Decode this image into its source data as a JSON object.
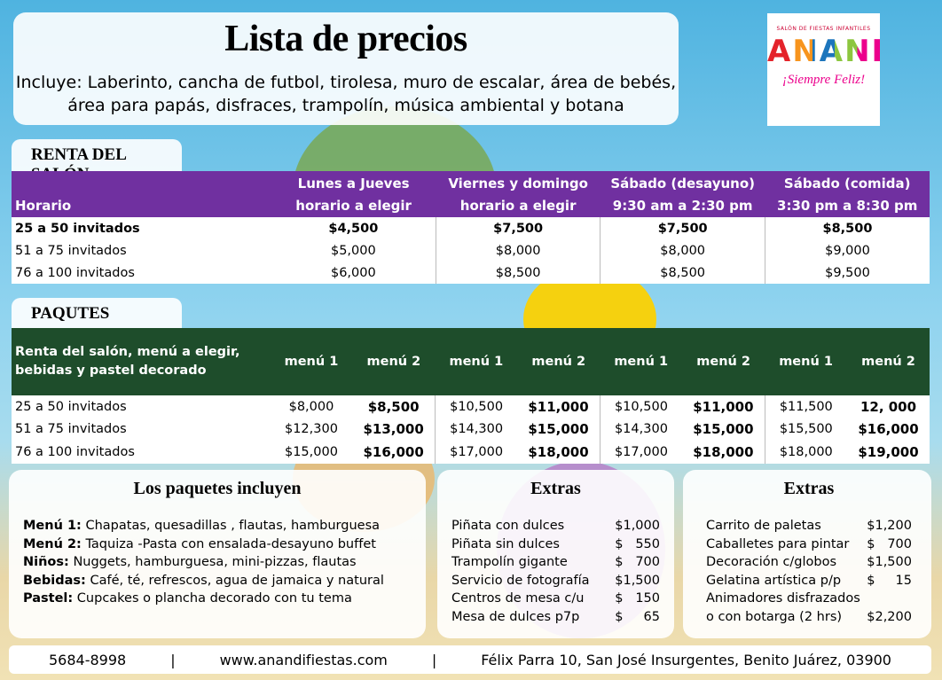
{
  "header": {
    "title": "Lista de precios",
    "lines": [
      "Incluye: Laberinto, cancha de futbol, tirolesa, muro de escalar, área de bebés,",
      "área para papás, disfraces, trampolín, música ambiental y botana"
    ]
  },
  "logo": {
    "top": "SALÓN DE FIESTAS INFANTILES",
    "name": "ANANDI",
    "slogan": "¡Siempre Feliz!"
  },
  "rental": {
    "label": "RENTA DEL SALÓN",
    "header": [
      [
        "",
        "Horario"
      ],
      [
        "Lunes a Jueves",
        "horario a elegir"
      ],
      [
        "Viernes y domingo",
        "horario a elegir"
      ],
      [
        "Sábado (desayuno)",
        "9:30 am a 2:30 pm"
      ],
      [
        "Sábado (comida)",
        "3:30 pm a 8:30 pm"
      ]
    ],
    "rows": [
      [
        "25 a 50 invitados",
        "$4,500",
        "$7,500",
        "$7,500",
        "$8,500"
      ],
      [
        "51 a 75 invitados",
        "$5,000",
        "$8,000",
        "$8,000",
        "$9,000"
      ],
      [
        "76 a 100 invitados",
        "$6,000",
        "$8,500",
        "$8,500",
        "$9,500"
      ]
    ]
  },
  "packages": {
    "label": "PAQUTES",
    "header": [
      "Renta del salón, menú a elegir, bebidas y pastel decorado",
      "menú 1",
      "menú 2",
      "menú 1",
      "menú 2",
      "menú 1",
      "menú 2",
      "menú 1",
      "menú 2"
    ],
    "rows": [
      [
        "25 a 50 invitados",
        "$8,000",
        "$8,500",
        "$10,500",
        "$11,000",
        "$10,500",
        "$11,000",
        "$11,500",
        "12, 000"
      ],
      [
        "51 a 75 invitados",
        "$12,300",
        "$13,000",
        "$14,300",
        "$15,000",
        "$14,300",
        "$15,000",
        "$15,500",
        "$16,000"
      ],
      [
        "76 a 100 invitados",
        "$15,000",
        "$16,000",
        "$17,000",
        "$18,000",
        "$17,000",
        "$18,000",
        "$18,000",
        "$19,000"
      ]
    ]
  },
  "includes": {
    "title": "Los paquetes incluyen",
    "items": [
      [
        "Menú 1:",
        "Chapatas, quesadillas , flautas, hamburguesa"
      ],
      [
        "Menú 2:",
        "Taquiza -Pasta con ensalada-desayuno buffet"
      ],
      [
        "Niños:",
        "Nuggets, hamburguesa, mini-pizzas, flautas"
      ],
      [
        "Bebidas:",
        "Café, té, refrescos, agua de jamaica y natural"
      ],
      [
        "Pastel:",
        "Cupcakes o plancha decorado con tu tema"
      ]
    ]
  },
  "extras_1": {
    "title": "Extras",
    "items": [
      [
        "Piñata con dulces",
        "$1,000"
      ],
      [
        "Piñata sin dulces",
        "$   550"
      ],
      [
        "Trampolín gigante",
        "$   700"
      ],
      [
        "Servicio de fotografía",
        "$1,500"
      ],
      [
        "Centros de mesa c/u",
        "$   150"
      ],
      [
        "Mesa de dulces p7p",
        "$     65"
      ]
    ]
  },
  "extras_2": {
    "title": "Extras",
    "items": [
      [
        "Carrito de paletas",
        "$1,200"
      ],
      [
        "Caballetes para pintar",
        "$   700"
      ],
      [
        "Decoración c/globos",
        "$1,500"
      ],
      [
        "Gelatina artística p/p",
        "$     15"
      ],
      [
        "Animadores disfrazados o con botarga (2 hrs)",
        "$2,200"
      ]
    ]
  },
  "footer": [
    "5684-8998",
    "|",
    "www.anandifiestas.com",
    "|",
    "Félix Parra 10, San José Insurgentes, Benito Juárez, 03900"
  ]
}
